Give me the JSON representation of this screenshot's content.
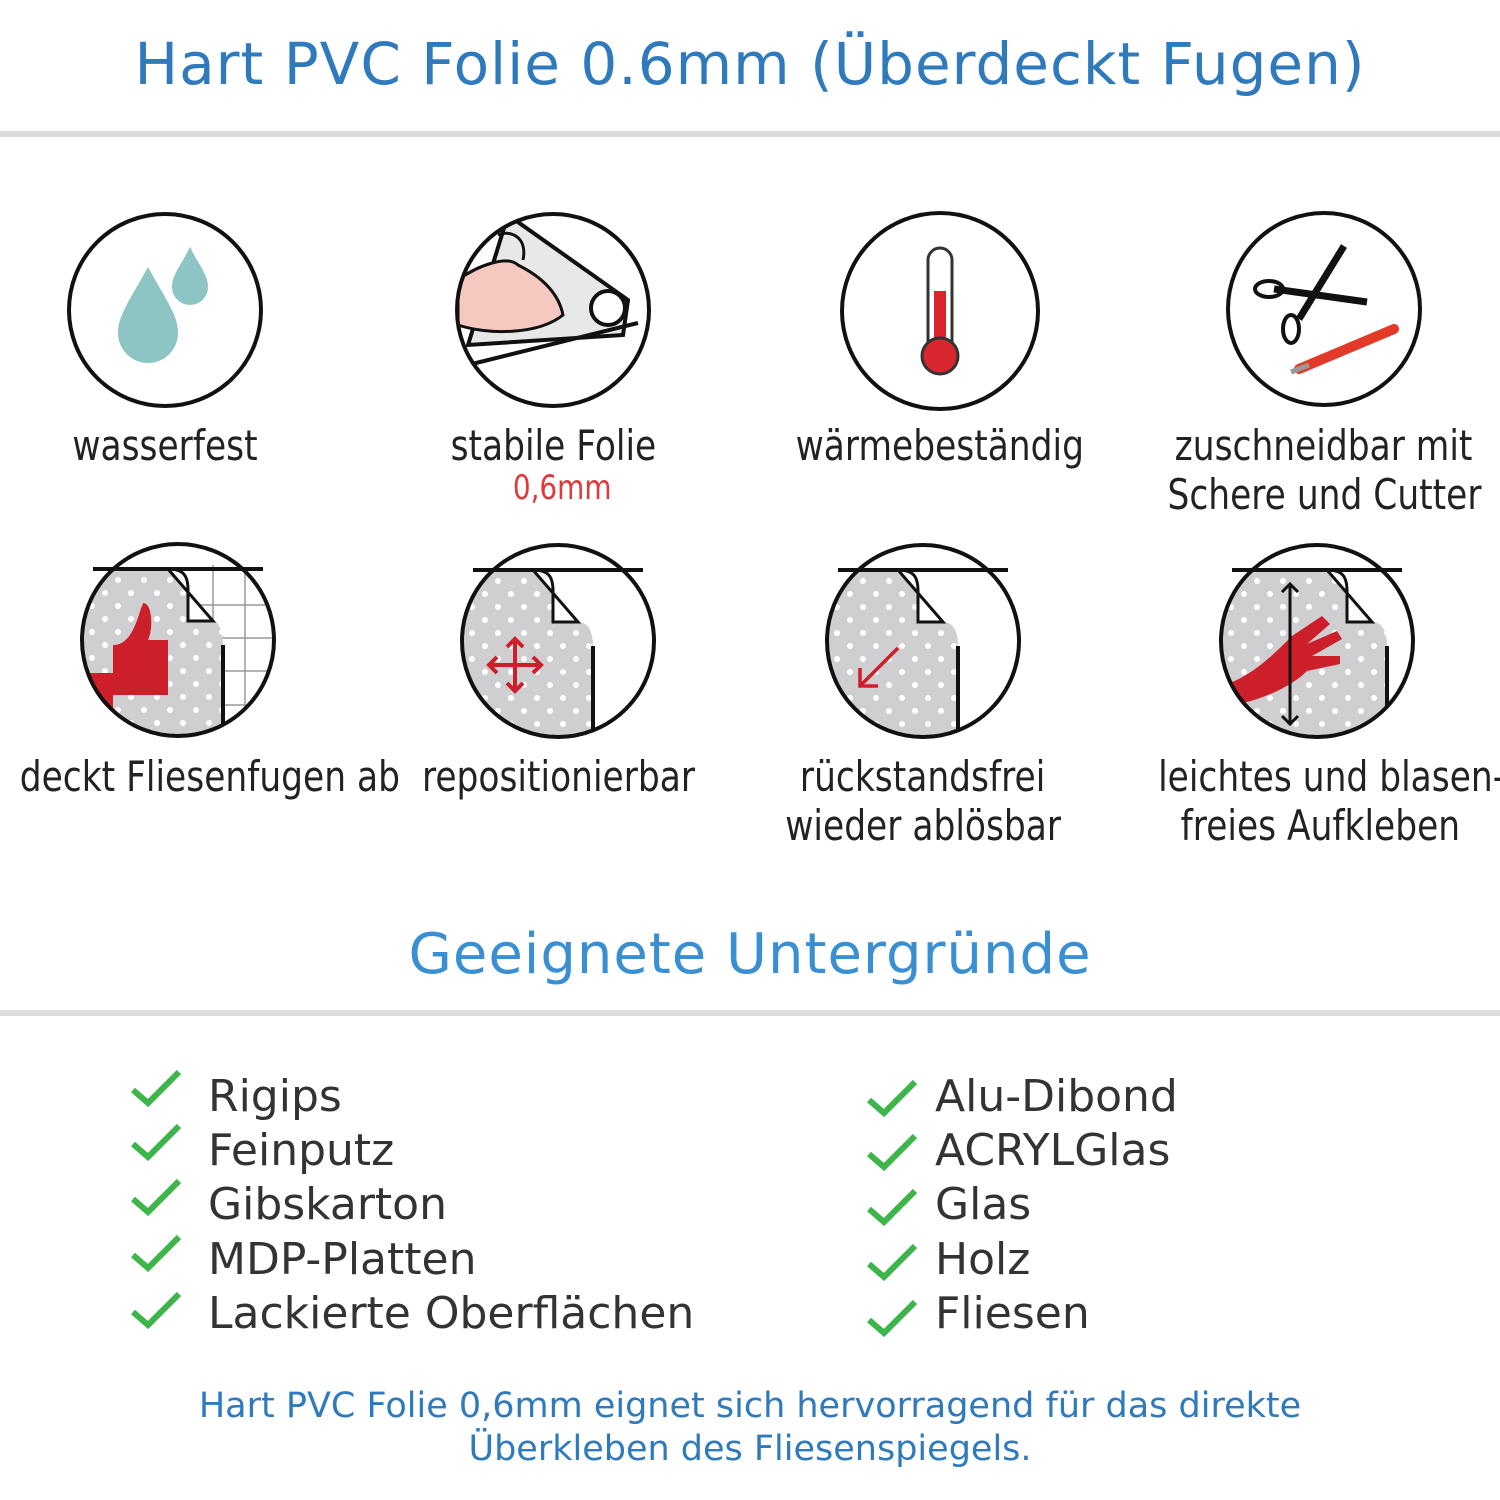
{
  "header": {
    "title": "Hart PVC Folie 0.6mm (Überdeckt Fugen)"
  },
  "features": [
    {
      "icon": "water-drops-icon",
      "label": "wasserfest"
    },
    {
      "icon": "strong-arm-foil-icon",
      "label": "stabile Folie",
      "sublabel": "0,6mm"
    },
    {
      "icon": "thermometer-icon",
      "label": "wärmebeständig"
    },
    {
      "icon": "scissors-cutter-icon",
      "line1": "zuschneidbar mit",
      "line2": "Schere und Cutter"
    },
    {
      "icon": "thumbs-up-tile-icon",
      "label": "deckt Fliesenfugen ab"
    },
    {
      "icon": "move-arrows-icon",
      "label": "repositionierbar"
    },
    {
      "icon": "peel-arrow-icon",
      "line1": "rückstandsfrei",
      "line2": "wieder ablösbar"
    },
    {
      "icon": "hand-smooth-icon",
      "line1": "leichtes und blasen-",
      "line2": "freies Aufkleben"
    }
  ],
  "surfaces": {
    "title": "Geeignete Untergründe",
    "left": [
      "Rigips",
      "Feinputz",
      "Gibskarton",
      "MDP-Platten",
      "Lackierte Oberflächen"
    ],
    "right": [
      "Alu-Dibond",
      "ACRYLGlas",
      "Glas",
      "Holz",
      "Fliesen"
    ]
  },
  "footer": {
    "line1": "Hart PVC Folie 0,6mm eignet sich hervorragend für das direkte",
    "line2": "Überkleben des Fliesenspiegels."
  },
  "colors": {
    "title": "#2f79bd",
    "accent_red": "#cc1f2a",
    "check_green": "#3db54a",
    "drop": "#8cc5c4"
  }
}
